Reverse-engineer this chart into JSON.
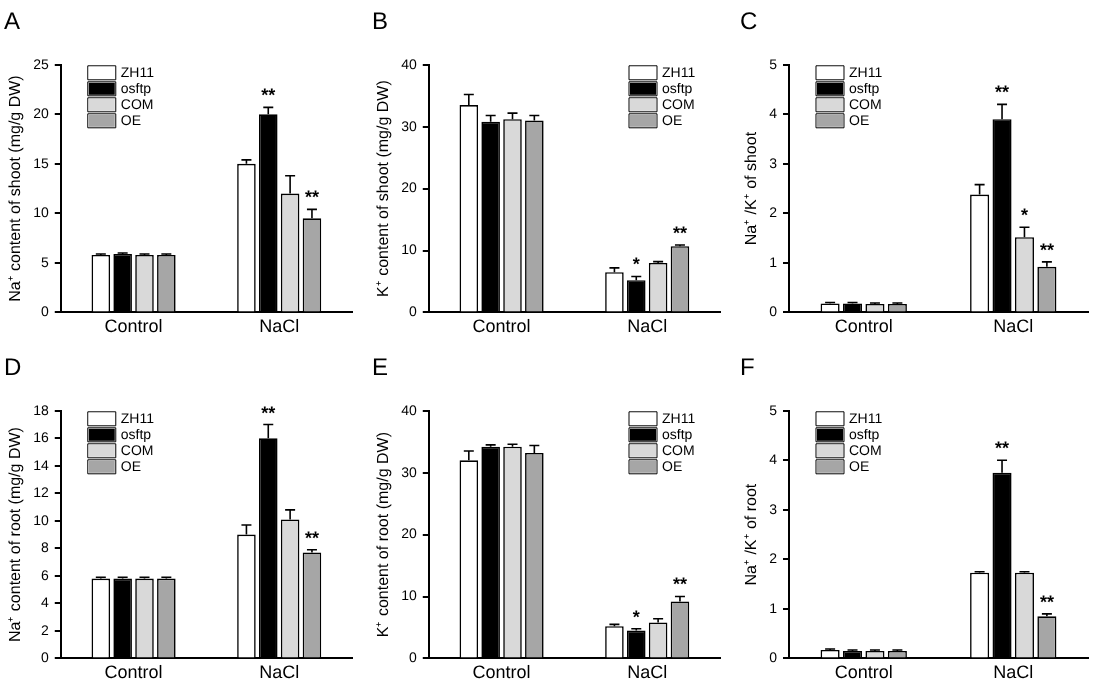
{
  "chart_data": [
    {
      "type": "bar",
      "title": "A",
      "ylabel": "Na⁺ content of shoot (mg/g DW)",
      "categories": [
        "Control",
        "NaCl"
      ],
      "ylim": [
        0,
        25
      ],
      "yticks": [
        0,
        5,
        10,
        15,
        20,
        25
      ],
      "grid": false,
      "legend": "top left",
      "series": [
        {
          "name": "ZH11",
          "color": "#ffffff",
          "values": [
            5.8,
            15
          ],
          "errors": [
            0.1,
            0.4
          ],
          "value_labels": [
            null,
            null
          ]
        },
        {
          "name": "osftp",
          "color": "#000000",
          "values": [
            5.9,
            20
          ],
          "errors": [
            0.1,
            0.7
          ],
          "value_labels": [
            null,
            "**"
          ]
        },
        {
          "name": "COM",
          "color": "#d9d9d9",
          "values": [
            5.8,
            12
          ],
          "errors": [
            0.1,
            1.8
          ],
          "value_labels": [
            null,
            null
          ]
        },
        {
          "name": "OE",
          "color": "#a6a6a6",
          "values": [
            5.8,
            9.5
          ],
          "errors": [
            0.1,
            0.9
          ],
          "value_labels": [
            null,
            "**"
          ]
        }
      ]
    },
    {
      "type": "bar",
      "title": "B",
      "ylabel": "K⁺ content of shoot (mg/g DW)",
      "categories": [
        "Control",
        "NaCl"
      ],
      "ylim": [
        0,
        40
      ],
      "yticks": [
        0,
        10,
        20,
        30,
        40
      ],
      "grid": false,
      "legend": "top right",
      "series": [
        {
          "name": "ZH11",
          "color": "#ffffff",
          "values": [
            33.5,
            6.5
          ],
          "errors": [
            1.7,
            0.7
          ],
          "value_labels": [
            null,
            null
          ]
        },
        {
          "name": "osftp",
          "color": "#000000",
          "values": [
            30.8,
            5.2
          ],
          "errors": [
            1,
            0.6
          ],
          "value_labels": [
            null,
            "*"
          ]
        },
        {
          "name": "COM",
          "color": "#d9d9d9",
          "values": [
            31.2,
            8
          ],
          "errors": [
            1,
            0.2
          ],
          "value_labels": [
            null,
            null
          ]
        },
        {
          "name": "OE",
          "color": "#a6a6a6",
          "values": [
            31,
            10.7
          ],
          "errors": [
            0.8,
            0.2
          ],
          "value_labels": [
            null,
            "**"
          ]
        }
      ]
    },
    {
      "type": "bar",
      "title": "C",
      "ylabel": "Na⁺ /K⁺ of shoot",
      "categories": [
        "Control",
        "NaCl"
      ],
      "ylim": [
        0,
        5
      ],
      "yticks": [
        0,
        1,
        2,
        3,
        4,
        5
      ],
      "grid": false,
      "legend": "top left",
      "series": [
        {
          "name": "ZH11",
          "color": "#ffffff",
          "values": [
            0.18,
            2.38
          ],
          "errors": [
            0.02,
            0.2
          ],
          "value_labels": [
            null,
            null
          ]
        },
        {
          "name": "osftp",
          "color": "#000000",
          "values": [
            0.18,
            3.9
          ],
          "errors": [
            0.02,
            0.3
          ],
          "value_labels": [
            null,
            "**"
          ]
        },
        {
          "name": "COM",
          "color": "#d9d9d9",
          "values": [
            0.17,
            1.52
          ],
          "errors": [
            0.02,
            0.2
          ],
          "value_labels": [
            null,
            "*"
          ]
        },
        {
          "name": "OE",
          "color": "#a6a6a6",
          "values": [
            0.17,
            0.92
          ],
          "errors": [
            0.02,
            0.1
          ],
          "value_labels": [
            null,
            "**"
          ]
        }
      ]
    },
    {
      "type": "bar",
      "title": "D",
      "ylabel": "Na⁺ content of root (mg/g DW)",
      "categories": [
        "Control",
        "NaCl"
      ],
      "ylim": [
        0,
        18
      ],
      "yticks": [
        0,
        2,
        4,
        6,
        8,
        10,
        12,
        14,
        16,
        18
      ],
      "grid": false,
      "legend": "top left",
      "series": [
        {
          "name": "ZH11",
          "color": "#ffffff",
          "values": [
            5.8,
            9
          ],
          "errors": [
            0.1,
            0.7
          ],
          "value_labels": [
            null,
            null
          ]
        },
        {
          "name": "osftp",
          "color": "#000000",
          "values": [
            5.8,
            16
          ],
          "errors": [
            0.1,
            1
          ],
          "value_labels": [
            null,
            "**"
          ]
        },
        {
          "name": "COM",
          "color": "#d9d9d9",
          "values": [
            5.8,
            10.1
          ],
          "errors": [
            0.1,
            0.7
          ],
          "value_labels": [
            null,
            null
          ]
        },
        {
          "name": "OE",
          "color": "#a6a6a6",
          "values": [
            5.8,
            7.7
          ],
          "errors": [
            0.1,
            0.2
          ],
          "value_labels": [
            null,
            "**"
          ]
        }
      ]
    },
    {
      "type": "bar",
      "title": "E",
      "ylabel": "K⁺ content of root (mg/g DW)",
      "categories": [
        "Control",
        "NaCl"
      ],
      "ylim": [
        0,
        40
      ],
      "yticks": [
        0,
        10,
        20,
        30,
        40
      ],
      "grid": false,
      "legend": "top right",
      "series": [
        {
          "name": "ZH11",
          "color": "#ffffff",
          "values": [
            32,
            5.2
          ],
          "errors": [
            1.5,
            0.3
          ],
          "value_labels": [
            null,
            null
          ]
        },
        {
          "name": "osftp",
          "color": "#000000",
          "values": [
            34.2,
            4.5
          ],
          "errors": [
            0.3,
            0.3
          ],
          "value_labels": [
            null,
            "*"
          ]
        },
        {
          "name": "COM",
          "color": "#d9d9d9",
          "values": [
            34.2,
            5.8
          ],
          "errors": [
            0.4,
            0.6
          ],
          "value_labels": [
            null,
            null
          ]
        },
        {
          "name": "OE",
          "color": "#a6a6a6",
          "values": [
            33.2,
            9.2
          ],
          "errors": [
            1.2,
            0.8
          ],
          "value_labels": [
            null,
            "**"
          ]
        }
      ]
    },
    {
      "type": "bar",
      "title": "F",
      "ylabel": "Na⁺ /K⁺ of root",
      "categories": [
        "Control",
        "NaCl"
      ],
      "ylim": [
        0,
        5
      ],
      "yticks": [
        0,
        1,
        2,
        3,
        4,
        5
      ],
      "grid": false,
      "legend": "top left",
      "series": [
        {
          "name": "ZH11",
          "color": "#ffffff",
          "values": [
            0.17,
            1.73
          ],
          "errors": [
            0.02,
            0.02
          ],
          "value_labels": [
            null,
            null
          ]
        },
        {
          "name": "osftp",
          "color": "#000000",
          "values": [
            0.15,
            3.75
          ],
          "errors": [
            0.02,
            0.25
          ],
          "value_labels": [
            null,
            "**"
          ]
        },
        {
          "name": "COM",
          "color": "#d9d9d9",
          "values": [
            0.15,
            1.73
          ],
          "errors": [
            0.02,
            0.02
          ],
          "value_labels": [
            null,
            null
          ]
        },
        {
          "name": "OE",
          "color": "#a6a6a6",
          "values": [
            0.15,
            0.85
          ],
          "errors": [
            0.02,
            0.05
          ],
          "value_labels": [
            null,
            "**"
          ]
        }
      ]
    }
  ]
}
